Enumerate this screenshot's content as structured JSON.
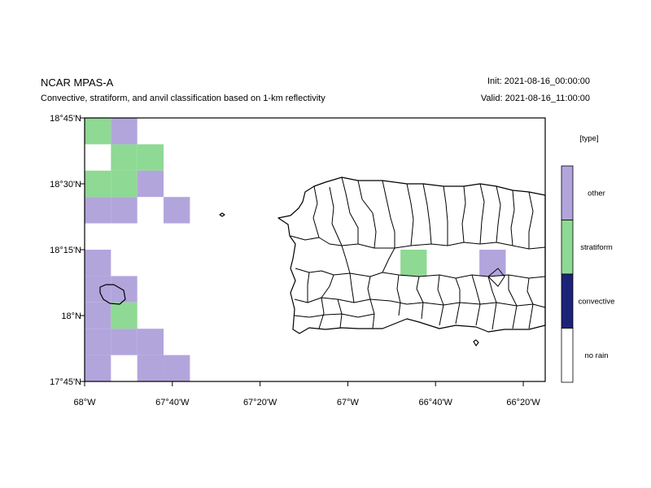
{
  "header": {
    "title": "NCAR MPAS-A",
    "subtitle": "Convective, stratiform, and anvil classification based on 1-km reflectivity",
    "init": "Init: 2021-08-16_00:00:00",
    "valid": "Valid: 2021-08-16_11:00:00"
  },
  "map": {
    "region": "Puerto Rico",
    "lon_range": [
      -68.0,
      -66.25
    ],
    "lat_range": [
      17.75,
      18.75
    ],
    "x_ticks": [
      {
        "value": -68.0,
        "label": "68°W"
      },
      {
        "value": -67.6667,
        "label": "67°40'W"
      },
      {
        "value": -67.3333,
        "label": "67°20'W"
      },
      {
        "value": -67.0,
        "label": "67°W"
      },
      {
        "value": -66.6667,
        "label": "66°40'W"
      },
      {
        "value": -66.3333,
        "label": "66°20'W"
      }
    ],
    "y_ticks": [
      {
        "value": 18.75,
        "label": "18°45'N"
      },
      {
        "value": 18.5,
        "label": "18°30'N"
      },
      {
        "value": 18.25,
        "label": "18°15'N"
      },
      {
        "value": 18.0,
        "label": "18°N"
      },
      {
        "value": 17.75,
        "label": "17°45'N"
      }
    ],
    "cell_size_deg": 0.1,
    "cells": [
      {
        "lon": -67.95,
        "lat": 18.7,
        "class": "stratiform"
      },
      {
        "lon": -67.85,
        "lat": 18.7,
        "class": "other"
      },
      {
        "lon": -67.85,
        "lat": 18.6,
        "class": "stratiform"
      },
      {
        "lon": -67.75,
        "lat": 18.6,
        "class": "stratiform"
      },
      {
        "lon": -67.95,
        "lat": 18.5,
        "class": "stratiform"
      },
      {
        "lon": -67.85,
        "lat": 18.5,
        "class": "stratiform"
      },
      {
        "lon": -67.75,
        "lat": 18.5,
        "class": "other"
      },
      {
        "lon": -67.95,
        "lat": 18.4,
        "class": "other"
      },
      {
        "lon": -67.85,
        "lat": 18.4,
        "class": "other"
      },
      {
        "lon": -67.65,
        "lat": 18.4,
        "class": "other"
      },
      {
        "lon": -67.95,
        "lat": 18.2,
        "class": "other"
      },
      {
        "lon": -67.95,
        "lat": 18.1,
        "class": "other"
      },
      {
        "lon": -67.85,
        "lat": 18.1,
        "class": "other"
      },
      {
        "lon": -67.95,
        "lat": 18.0,
        "class": "other"
      },
      {
        "lon": -67.85,
        "lat": 18.0,
        "class": "stratiform"
      },
      {
        "lon": -67.95,
        "lat": 17.9,
        "class": "other"
      },
      {
        "lon": -67.85,
        "lat": 17.9,
        "class": "other"
      },
      {
        "lon": -67.75,
        "lat": 17.9,
        "class": "other"
      },
      {
        "lon": -67.95,
        "lat": 17.8,
        "class": "other"
      },
      {
        "lon": -67.75,
        "lat": 17.8,
        "class": "other"
      },
      {
        "lon": -67.65,
        "lat": 17.8,
        "class": "other"
      },
      {
        "lon": -66.75,
        "lat": 18.2,
        "class": "stratiform"
      },
      {
        "lon": -66.45,
        "lat": 18.2,
        "class": "other"
      }
    ]
  },
  "legend": {
    "title": "[type]",
    "items": [
      {
        "label": "other",
        "color": "#b2a5dc"
      },
      {
        "label": "stratiform",
        "color": "#8ed994"
      },
      {
        "label": "convective",
        "color": "#1c2377"
      },
      {
        "label": "no rain",
        "color": "#ffffff"
      }
    ]
  },
  "colors": {
    "other": "#b2a5dc",
    "stratiform": "#8ed994",
    "convective": "#1c2377",
    "no_rain": "#ffffff"
  }
}
